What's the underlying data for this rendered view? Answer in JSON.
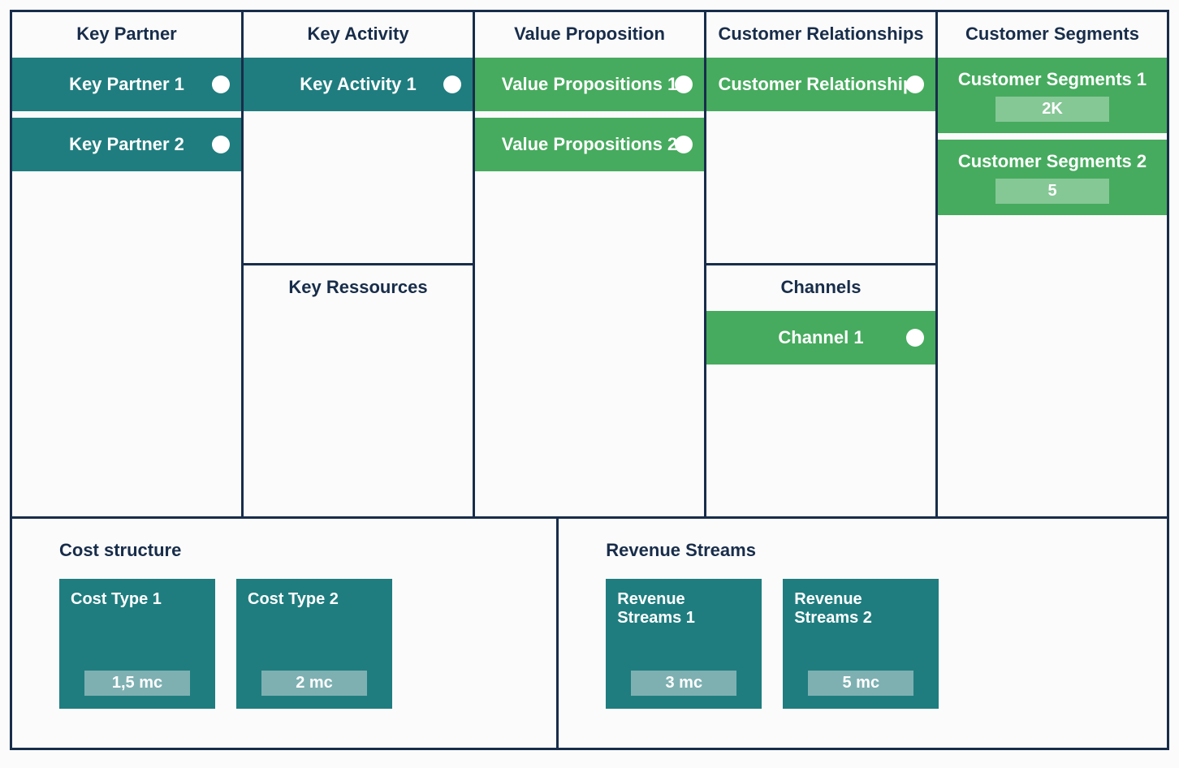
{
  "type": "business-model-canvas",
  "border_color": "#182d4a",
  "text_color": "#182d4a",
  "teal": "#1f7d7f",
  "teal_badge": "#7eb0b2",
  "green": "#46ab5e",
  "green_badge": "#86c796",
  "dot_color": "#ffffff",
  "columns": {
    "key_partner": {
      "title": "Key Partner",
      "cards": [
        {
          "label": "Key Partner 1",
          "dot": true,
          "color": "teal"
        },
        {
          "label": "Key Partner 2",
          "dot": true,
          "color": "teal"
        }
      ]
    },
    "key_activity": {
      "title": "Key Activity",
      "cards": [
        {
          "label": "Key Activity 1",
          "dot": true,
          "color": "teal"
        }
      ]
    },
    "key_resources": {
      "title": "Key Ressources",
      "cards": []
    },
    "value_proposition": {
      "title": "Value Proposition",
      "cards": [
        {
          "label": "Value Propositions 1",
          "dot": true,
          "color": "green"
        },
        {
          "label": "Value Propositions 2",
          "dot": true,
          "color": "green"
        }
      ]
    },
    "customer_relationships": {
      "title": "Customer Relationships",
      "cards": [
        {
          "label": "Customer Relationships",
          "dot": true,
          "color": "green"
        }
      ]
    },
    "channels": {
      "title": "Channels",
      "cards": [
        {
          "label": "Channel 1",
          "dot": true,
          "color": "green"
        }
      ]
    },
    "customer_segments": {
      "title": "Customer Segments",
      "cards": [
        {
          "label": "Customer Segments 1",
          "badge": "2K",
          "color": "green"
        },
        {
          "label": "Customer Segments 2",
          "badge": "5",
          "color": "green"
        }
      ]
    }
  },
  "cost_structure": {
    "title": "Cost structure",
    "tiles": [
      {
        "label": "Cost Type 1",
        "badge": "1,5 mc",
        "color": "teal"
      },
      {
        "label": "Cost Type 2",
        "badge": "2 mc",
        "color": "teal"
      }
    ]
  },
  "revenue_streams": {
    "title": "Revenue Streams",
    "tiles": [
      {
        "label": "Revenue Streams 1",
        "badge": "3 mc",
        "color": "teal"
      },
      {
        "label": "Revenue Streams 2",
        "badge": "5 mc",
        "color": "teal"
      }
    ]
  }
}
